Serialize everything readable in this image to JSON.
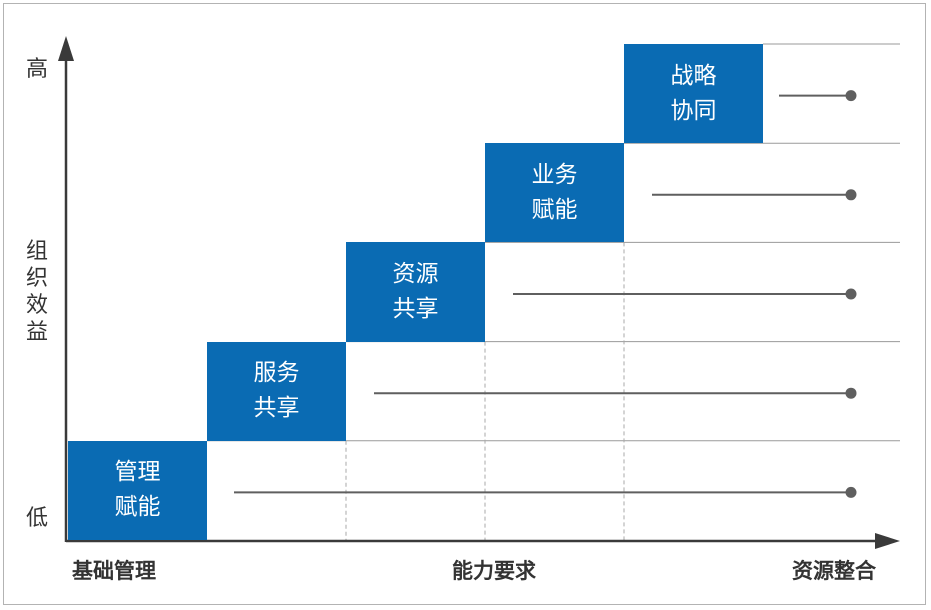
{
  "y_axis": {
    "high_label": "高",
    "title": "组织效益",
    "low_label": "低"
  },
  "x_axis": {
    "label_left": "基础管理",
    "label_center": "能力要求",
    "label_right": "资源整合"
  },
  "steps": [
    {
      "label": "管理\n赋能"
    },
    {
      "label": "服务\n共享"
    },
    {
      "label": "资源\n共享"
    },
    {
      "label": "业务\n赋能"
    },
    {
      "label": "战略\n协同"
    }
  ],
  "colors": {
    "step_fill": "#0a6bb3",
    "axis": "#3a3a3a",
    "grid_line": "#9a9a9a",
    "dashed_line": "#a8a8a8",
    "marker": "#5f5f5f"
  }
}
